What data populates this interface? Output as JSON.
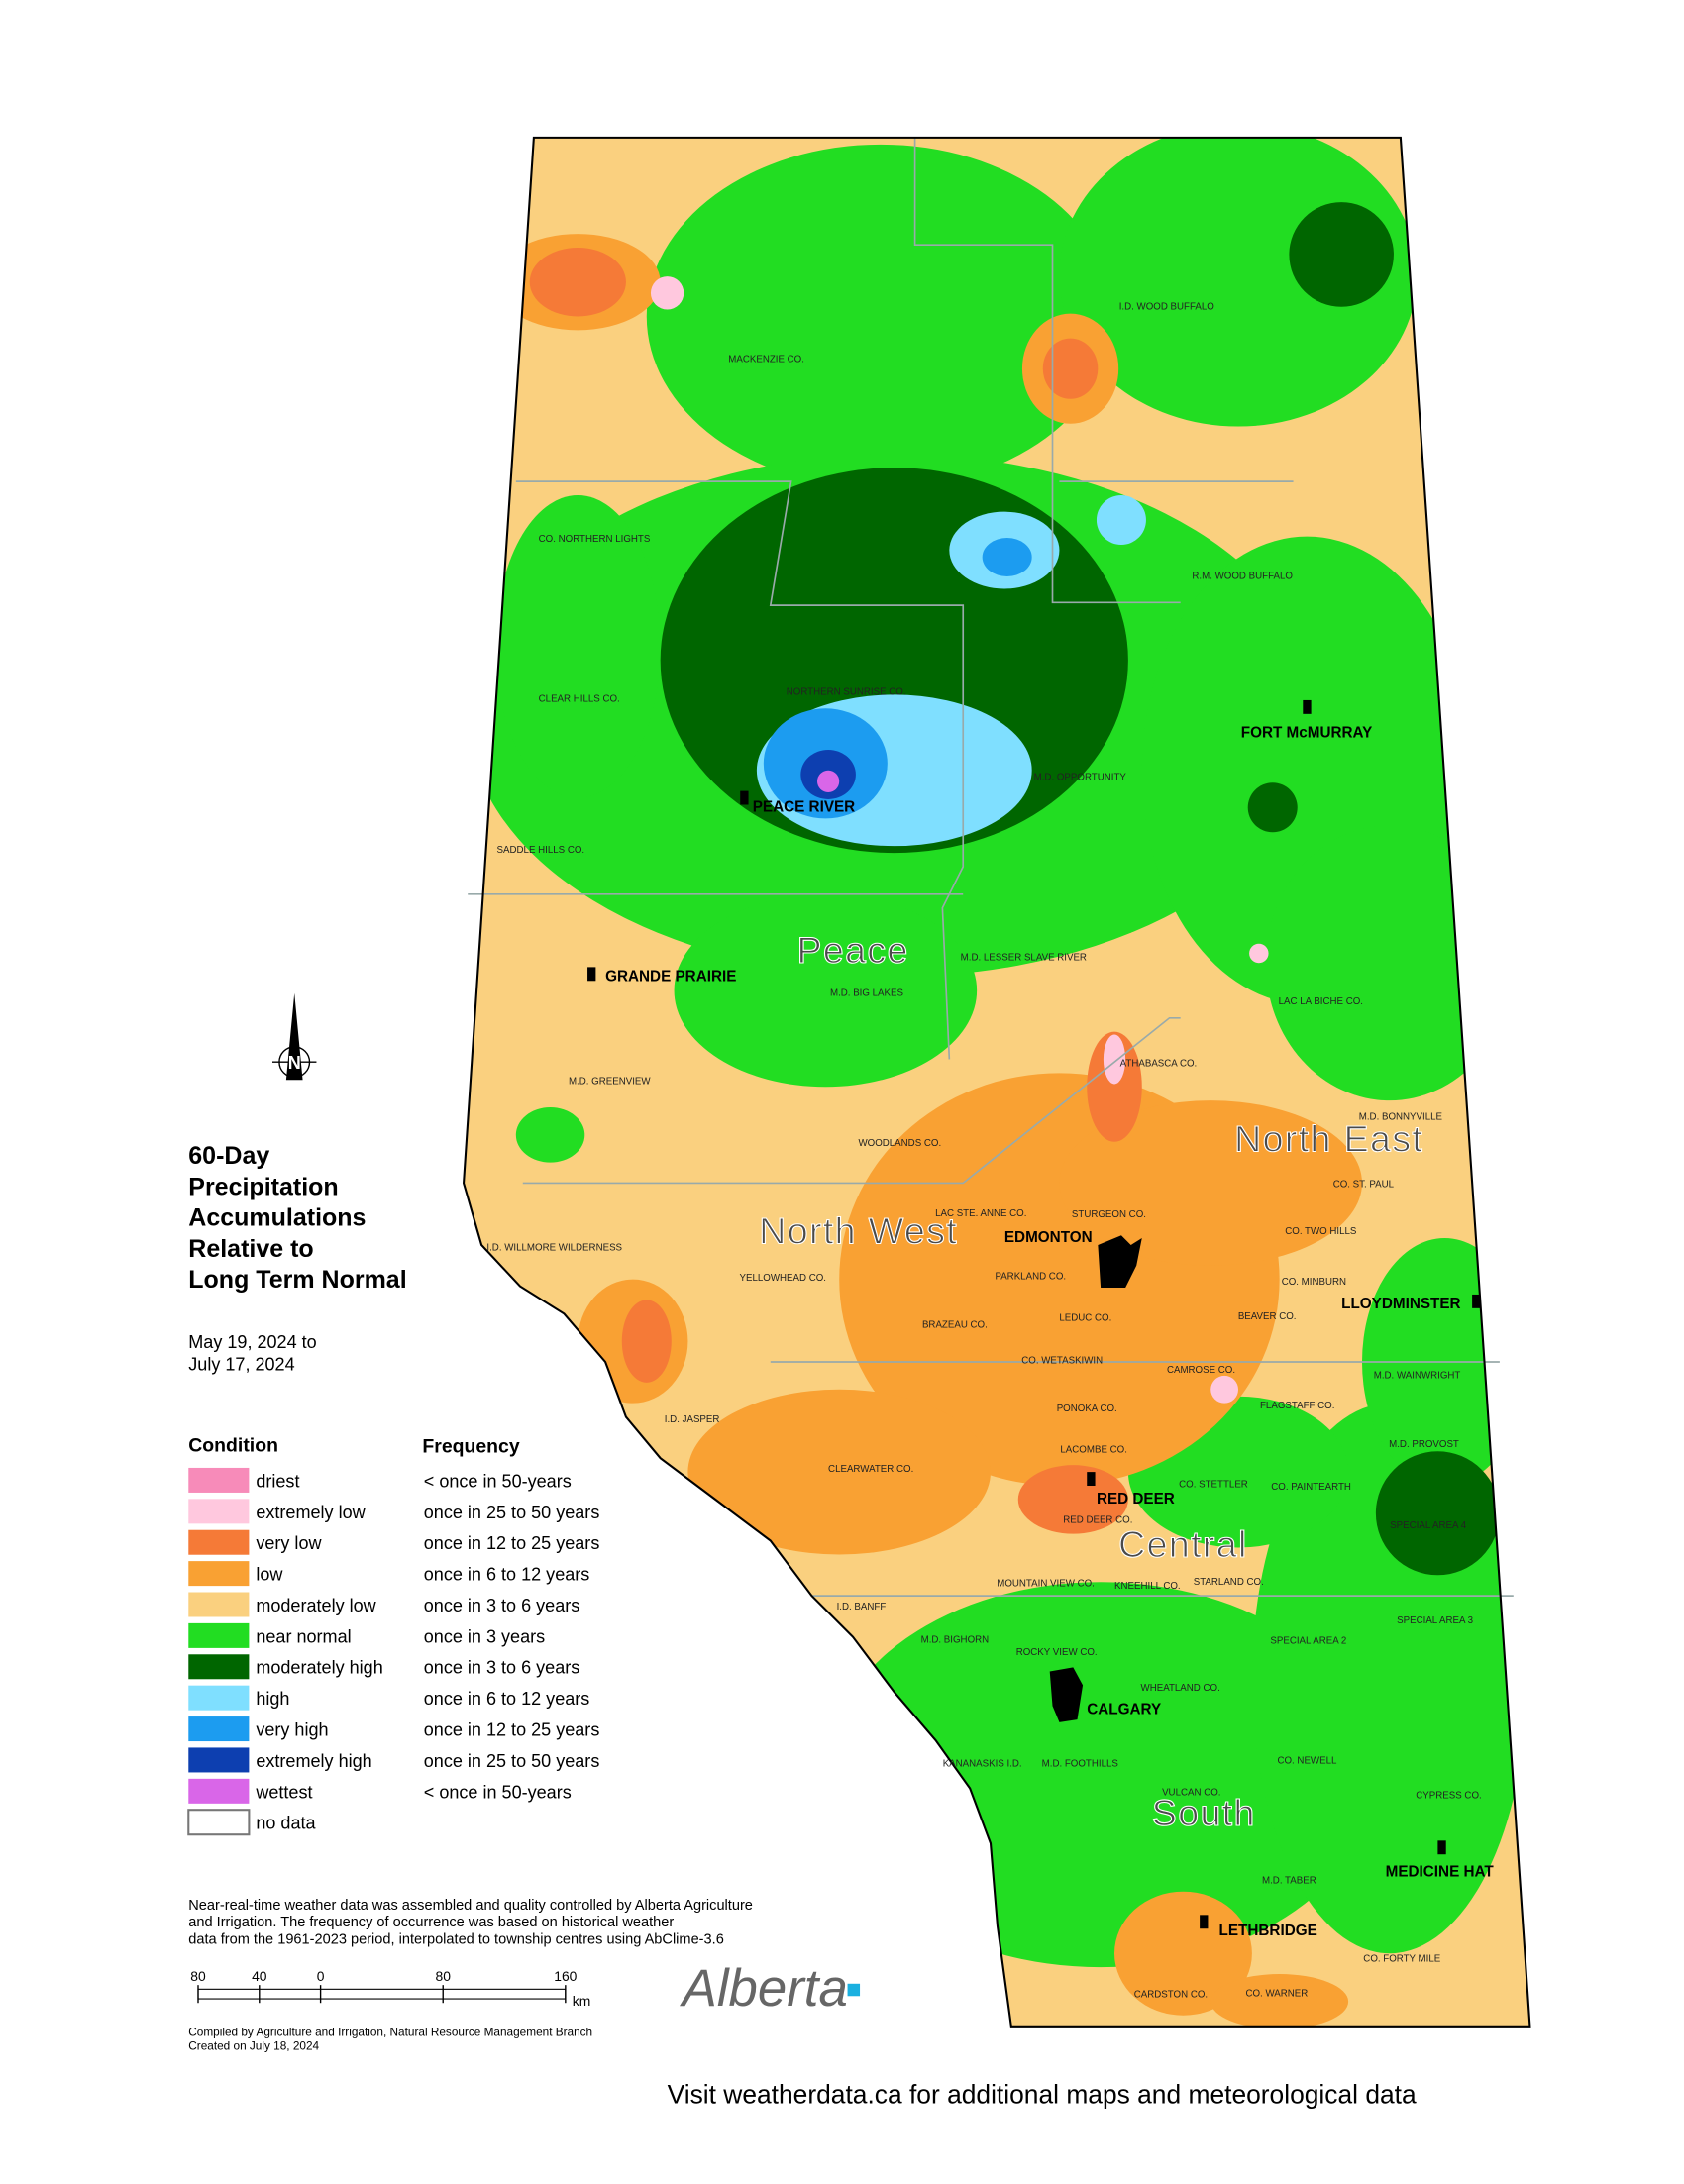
{
  "title_lines": [
    "60-Day",
    "Precipitation",
    "Accumulations",
    "Relative to",
    "Long Term Normal"
  ],
  "date_lines": [
    "May 19, 2024 to",
    "July 17, 2024"
  ],
  "legend": {
    "condition_header": "Condition",
    "frequency_header": "Frequency",
    "items": [
      {
        "condition": "driest",
        "frequency": "< once in 50-years",
        "color": "#f78bb9"
      },
      {
        "condition": "extremely low",
        "frequency": "once in 25 to 50 years",
        "color": "#ffc8de"
      },
      {
        "condition": "very low",
        "frequency": "once in 12 to 25 years",
        "color": "#f57a37"
      },
      {
        "condition": "low",
        "frequency": "once in 6 to 12 years",
        "color": "#f9a133"
      },
      {
        "condition": "moderately low",
        "frequency": "once in 3 to 6 years",
        "color": "#fad07f"
      },
      {
        "condition": "near normal",
        "frequency": "once in 3 years",
        "color": "#22dd22"
      },
      {
        "condition": "moderately high",
        "frequency": "once in 3 to 6 years",
        "color": "#006600"
      },
      {
        "condition": "high",
        "frequency": "once in 6 to 12 years",
        "color": "#7fdfff"
      },
      {
        "condition": "very high",
        "frequency": "once in 12 to 25 years",
        "color": "#1c9cf0"
      },
      {
        "condition": "extremely high",
        "frequency": "once in 25 to 50 years",
        "color": "#0d3fb0"
      },
      {
        "condition": "wettest",
        "frequency": "< once in 50-years",
        "color": "#d966e8"
      },
      {
        "condition": "no data",
        "color": "#ffffff"
      }
    ]
  },
  "regions": [
    "Peace",
    "North West",
    "North East",
    "Central",
    "South"
  ],
  "cities": [
    "PEACE RIVER",
    "GRANDE PRAIRIE",
    "FORT McMURRAY",
    "EDMONTON",
    "LLOYDMINSTER",
    "RED DEER",
    "CALGARY",
    "MEDICINE HAT",
    "LETHBRIDGE"
  ],
  "municipalities": [
    "I.D. WOOD BUFFALO",
    "MACKENZIE CO.",
    "CO. NORTHERN LIGHTS",
    "R.M. WOOD BUFFALO",
    "CLEAR HILLS CO.",
    "NORTHERN SUNRISE CO.",
    "M.D. OPPORTUNITY",
    "SADDLE HILLS CO.",
    "M.D. LESSER SLAVE RIVER",
    "M.D. BIG LAKES",
    "LAC LA BICHE CO.",
    "ATHABASCA CO.",
    "M.D. GREENVIEW",
    "WOODLANDS CO.",
    "M.D. BONNYVILLE",
    "CO. ST. PAUL",
    "LAC STE. ANNE CO.",
    "STURGEON CO.",
    "CO. TWO HILLS",
    "I.D. WILLMORE WILDERNESS",
    "YELLOWHEAD CO.",
    "PARKLAND CO.",
    "CO. MINBURN",
    "LEDUC CO.",
    "BRAZEAU CO.",
    "BEAVER CO.",
    "CO. WETASKIWIN",
    "CAMROSE CO.",
    "M.D. WAINWRIGHT",
    "I.D. JASPER",
    "PONOKA CO.",
    "FLAGSTAFF CO.",
    "LACOMBE CO.",
    "M.D. PROVOST",
    "CLEARWATER CO.",
    "CO. STETTLER",
    "CO. PAINTEARTH",
    "RED DEER CO.",
    "SPECIAL AREA 4",
    "MOUNTAIN VIEW CO.",
    "KNEEHILL CO.",
    "STARLAND CO.",
    "I.D. BANFF",
    "SPECIAL AREA 3",
    "M.D. BIGHORN",
    "SPECIAL AREA 2",
    "ROCKY VIEW CO.",
    "WHEATLAND CO.",
    "M.D. FOOTHILLS",
    "KANANASKIS I.D.",
    "CO. NEWELL",
    "VULCAN CO.",
    "CYPRESS CO.",
    "M.D. TABER",
    "CO. FORTY MILE",
    "CARDSTON CO.",
    "CO. WARNER"
  ],
  "notes": [
    "Near-real-time weather data was assembled and quality controlled by Alberta Agriculture",
    "and Irrigation. The frequency of occurrence was based on historical weather",
    "data from the 1961-2023 period, interpolated to township centres using AbClime-3.6"
  ],
  "scale_bar": {
    "ticks": [
      {
        "value": -80,
        "label": "80"
      },
      {
        "value": -40,
        "label": "40"
      },
      0,
      80,
      160
    ],
    "unit": "km"
  },
  "credits": [
    "Compiled by Agriculture and Irrigation, Natural Resource Management Branch",
    "Created on July 18, 2024"
  ],
  "logo": "Alberta",
  "footer": "Visit weatherdata.ca for additional maps and meteorological data"
}
